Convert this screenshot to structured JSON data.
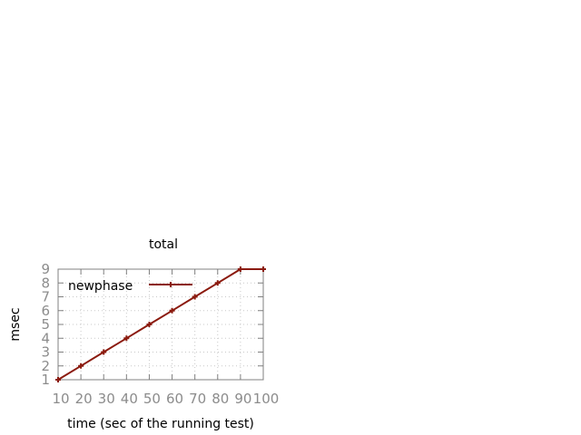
{
  "chart_data": {
    "type": "line",
    "title": "total",
    "xlabel": "time (sec of the running test)",
    "ylabel": "msec",
    "x": [
      10,
      20,
      30,
      40,
      50,
      60,
      70,
      80,
      90,
      100
    ],
    "xticks": [
      "10",
      "20",
      "30",
      "40",
      "50",
      "60",
      "70",
      "80",
      "90",
      "100"
    ],
    "yticks": [
      "1",
      "2",
      "3",
      "4",
      "5",
      "6",
      "7",
      "8",
      "9"
    ],
    "xlim": [
      10,
      100
    ],
    "ylim": [
      1,
      9
    ],
    "grid": true,
    "legend_position": "top-left",
    "series": [
      {
        "name": "newphase",
        "color": "#8b1a0e",
        "marker": "plus",
        "values": [
          1,
          2,
          3,
          4,
          5,
          6,
          7,
          8,
          9,
          9
        ]
      }
    ]
  }
}
